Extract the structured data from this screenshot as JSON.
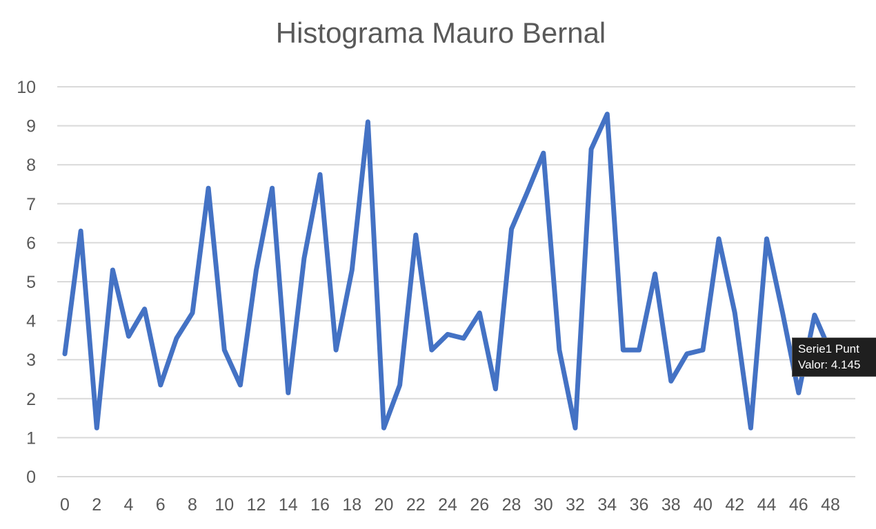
{
  "chart_data": {
    "type": "line",
    "title": "Histograma Mauro Bernal",
    "xlabel": "",
    "ylabel": "",
    "xlim": [
      0,
      48
    ],
    "ylim": [
      0,
      10
    ],
    "x_ticks": [
      0,
      2,
      4,
      6,
      8,
      10,
      12,
      14,
      16,
      18,
      20,
      22,
      24,
      26,
      28,
      30,
      32,
      34,
      36,
      38,
      40,
      42,
      44,
      46,
      48
    ],
    "y_ticks": [
      0,
      1,
      2,
      3,
      4,
      5,
      6,
      7,
      8,
      9,
      10
    ],
    "grid": true,
    "legend": "none",
    "series_color": "#4472C4",
    "series": [
      {
        "x": [
          0,
          1,
          2,
          3,
          4,
          5,
          6,
          7,
          8,
          9,
          10,
          11,
          12,
          13,
          14,
          15,
          16,
          17,
          18,
          19,
          20,
          21,
          22,
          23,
          24,
          25,
          26,
          27,
          28,
          29,
          30,
          31,
          32,
          33,
          34,
          35,
          36,
          37,
          38,
          39,
          40,
          41,
          42,
          43,
          44,
          45,
          46,
          47,
          48
        ],
        "values": [
          3.15,
          6.3,
          1.25,
          5.3,
          3.6,
          4.3,
          2.35,
          3.55,
          4.2,
          7.4,
          3.25,
          2.35,
          5.3,
          7.4,
          2.15,
          5.6,
          7.75,
          3.25,
          5.3,
          9.1,
          1.25,
          2.35,
          6.2,
          3.25,
          3.65,
          3.55,
          4.2,
          2.25,
          6.35,
          7.3,
          8.3,
          3.25,
          1.25,
          8.4,
          9.3,
          3.25,
          3.25,
          5.2,
          2.45,
          3.15,
          3.25,
          6.1,
          4.2,
          1.25,
          6.1,
          4.2,
          2.15,
          4.145,
          3.2
        ]
      }
    ],
    "tooltip": {
      "line1": "Serie1 Punt",
      "line2": "Valor: 4.145"
    }
  }
}
